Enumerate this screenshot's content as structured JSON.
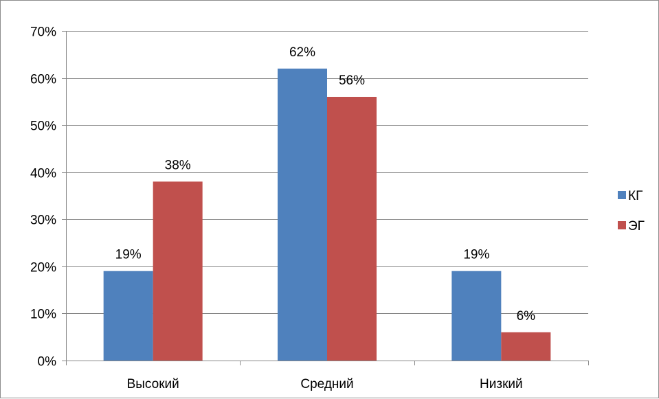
{
  "chart_data": {
    "type": "bar",
    "title": "",
    "xlabel": "",
    "ylabel": "",
    "categories": [
      "Высокий",
      "Средний",
      "Низкий"
    ],
    "series": [
      {
        "name": "КГ",
        "values": [
          19,
          62,
          19
        ],
        "labels": [
          "19%",
          "62%",
          "19%"
        ],
        "color": "#4f81bd"
      },
      {
        "name": "ЭГ",
        "values": [
          38,
          56,
          6
        ],
        "labels": [
          "38%",
          "56%",
          "6%"
        ],
        "color": "#c0504d"
      }
    ],
    "ylim": [
      0,
      70
    ],
    "yticks": [
      0,
      10,
      20,
      30,
      40,
      50,
      60,
      70
    ],
    "ytick_labels": [
      "0%",
      "10%",
      "20%",
      "30%",
      "40%",
      "50%",
      "60%",
      "70%"
    ],
    "grid": true,
    "legend_position": "right"
  }
}
